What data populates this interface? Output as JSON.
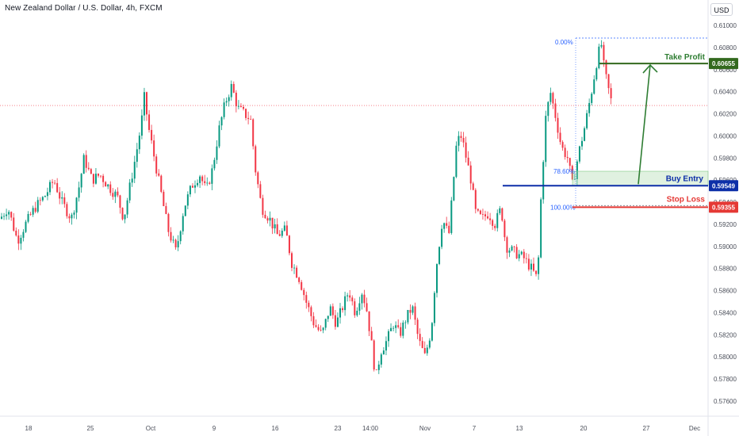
{
  "header": {
    "title": "New Zealand Dollar / U.S. Dollar, 4h, FXCM",
    "currency": "USD"
  },
  "chart_data": {
    "type": "candlestick",
    "symbol": "NZDUSD",
    "timeframe": "4h",
    "source": "FXCM",
    "y_range": [
      0.575,
      0.6105
    ],
    "y_ticks": [
      "0.61000",
      "0.60800",
      "0.60600",
      "0.60400",
      "0.60200",
      "0.60000",
      "0.59800",
      "0.59600",
      "0.59400",
      "0.59200",
      "0.59000",
      "0.58800",
      "0.58600",
      "0.58400",
      "0.58200",
      "0.58000",
      "0.57800",
      "0.57600"
    ],
    "x_ticks": [
      "18",
      "25",
      "Oct",
      "9",
      "16",
      "23",
      "14:00",
      "Nov",
      "7",
      "13",
      "20",
      "27",
      "Dec"
    ],
    "price_path": [
      [
        0,
        0.5925
      ],
      [
        10,
        0.5935
      ],
      [
        22,
        0.5905
      ],
      [
        32,
        0.592
      ],
      [
        44,
        0.5935
      ],
      [
        56,
        0.5945
      ],
      [
        68,
        0.596
      ],
      [
        78,
        0.594
      ],
      [
        90,
        0.5925
      ],
      [
        100,
        0.5955
      ],
      [
        106,
        0.598
      ],
      [
        116,
        0.596
      ],
      [
        126,
        0.5965
      ],
      [
        136,
        0.5955
      ],
      [
        148,
        0.5945
      ],
      [
        156,
        0.5925
      ],
      [
        164,
        0.5955
      ],
      [
        172,
        0.5985
      ],
      [
        178,
        0.601
      ],
      [
        182,
        0.6035
      ],
      [
        188,
        0.6005
      ],
      [
        196,
        0.5975
      ],
      [
        204,
        0.5945
      ],
      [
        212,
        0.5915
      ],
      [
        222,
        0.5895
      ],
      [
        232,
        0.5935
      ],
      [
        242,
        0.5955
      ],
      [
        252,
        0.5965
      ],
      [
        260,
        0.595
      ],
      [
        268,
        0.597
      ],
      [
        276,
        0.6005
      ],
      [
        284,
        0.603
      ],
      [
        292,
        0.6045
      ],
      [
        300,
        0.6025
      ],
      [
        308,
        0.602
      ],
      [
        316,
        0.6015
      ],
      [
        322,
        0.597
      ],
      [
        330,
        0.5935
      ],
      [
        340,
        0.5925
      ],
      [
        350,
        0.591
      ],
      [
        360,
        0.5915
      ],
      [
        368,
        0.5885
      ],
      [
        378,
        0.587
      ],
      [
        386,
        0.585
      ],
      [
        396,
        0.583
      ],
      [
        406,
        0.582
      ],
      [
        416,
        0.5845
      ],
      [
        424,
        0.583
      ],
      [
        432,
        0.5845
      ],
      [
        440,
        0.586
      ],
      [
        448,
        0.584
      ],
      [
        456,
        0.586
      ],
      [
        462,
        0.5845
      ],
      [
        468,
        0.5815
      ],
      [
        474,
        0.578
      ],
      [
        480,
        0.5805
      ],
      [
        488,
        0.5815
      ],
      [
        496,
        0.583
      ],
      [
        504,
        0.582
      ],
      [
        512,
        0.5835
      ],
      [
        520,
        0.5845
      ],
      [
        528,
        0.5815
      ],
      [
        536,
        0.58
      ],
      [
        544,
        0.5825
      ],
      [
        550,
        0.588
      ],
      [
        558,
        0.5925
      ],
      [
        566,
        0.591
      ],
      [
        572,
        0.596
      ],
      [
        576,
        0.5995
      ],
      [
        582,
        0.6
      ],
      [
        588,
        0.598
      ],
      [
        594,
        0.596
      ],
      [
        600,
        0.593
      ],
      [
        608,
        0.5925
      ],
      [
        616,
        0.593
      ],
      [
        624,
        0.592
      ],
      [
        632,
        0.5935
      ],
      [
        638,
        0.59
      ],
      [
        648,
        0.5895
      ],
      [
        660,
        0.589
      ],
      [
        670,
        0.588
      ],
      [
        678,
        0.587
      ],
      [
        682,
        0.594
      ],
      [
        688,
        0.6015
      ],
      [
        694,
        0.604
      ],
      [
        700,
        0.602
      ],
      [
        708,
        0.599
      ],
      [
        716,
        0.598
      ],
      [
        722,
        0.5955
      ],
      [
        730,
        0.5985
      ],
      [
        738,
        0.601
      ],
      [
        746,
        0.604
      ],
      [
        752,
        0.6065
      ],
      [
        758,
        0.6085
      ],
      [
        762,
        0.606
      ],
      [
        768,
        0.604
      ],
      [
        772,
        0.6028
      ]
    ],
    "last_price": 0.60275,
    "annotations": {
      "take_profit": {
        "label": "Take Profit",
        "price": 0.60655,
        "price_label": "0.60655",
        "color": "#33691e"
      },
      "buy_entry": {
        "label": "Buy Entry",
        "price": 0.59549,
        "price_label": "0.59549",
        "color": "#0d2fa8"
      },
      "stop_loss": {
        "label": "Stop Loss",
        "price": 0.59355,
        "price_label": "0.59355",
        "color": "#e53935"
      },
      "fib_levels": [
        {
          "label": "0.00%",
          "price": 0.60885
        },
        {
          "label": "78.60%",
          "price": 0.5968
        },
        {
          "label": "100.00%",
          "price": 0.59355
        }
      ]
    },
    "colors": {
      "up": "#089981",
      "down": "#f23645",
      "grid": "#f0f3fa"
    }
  }
}
